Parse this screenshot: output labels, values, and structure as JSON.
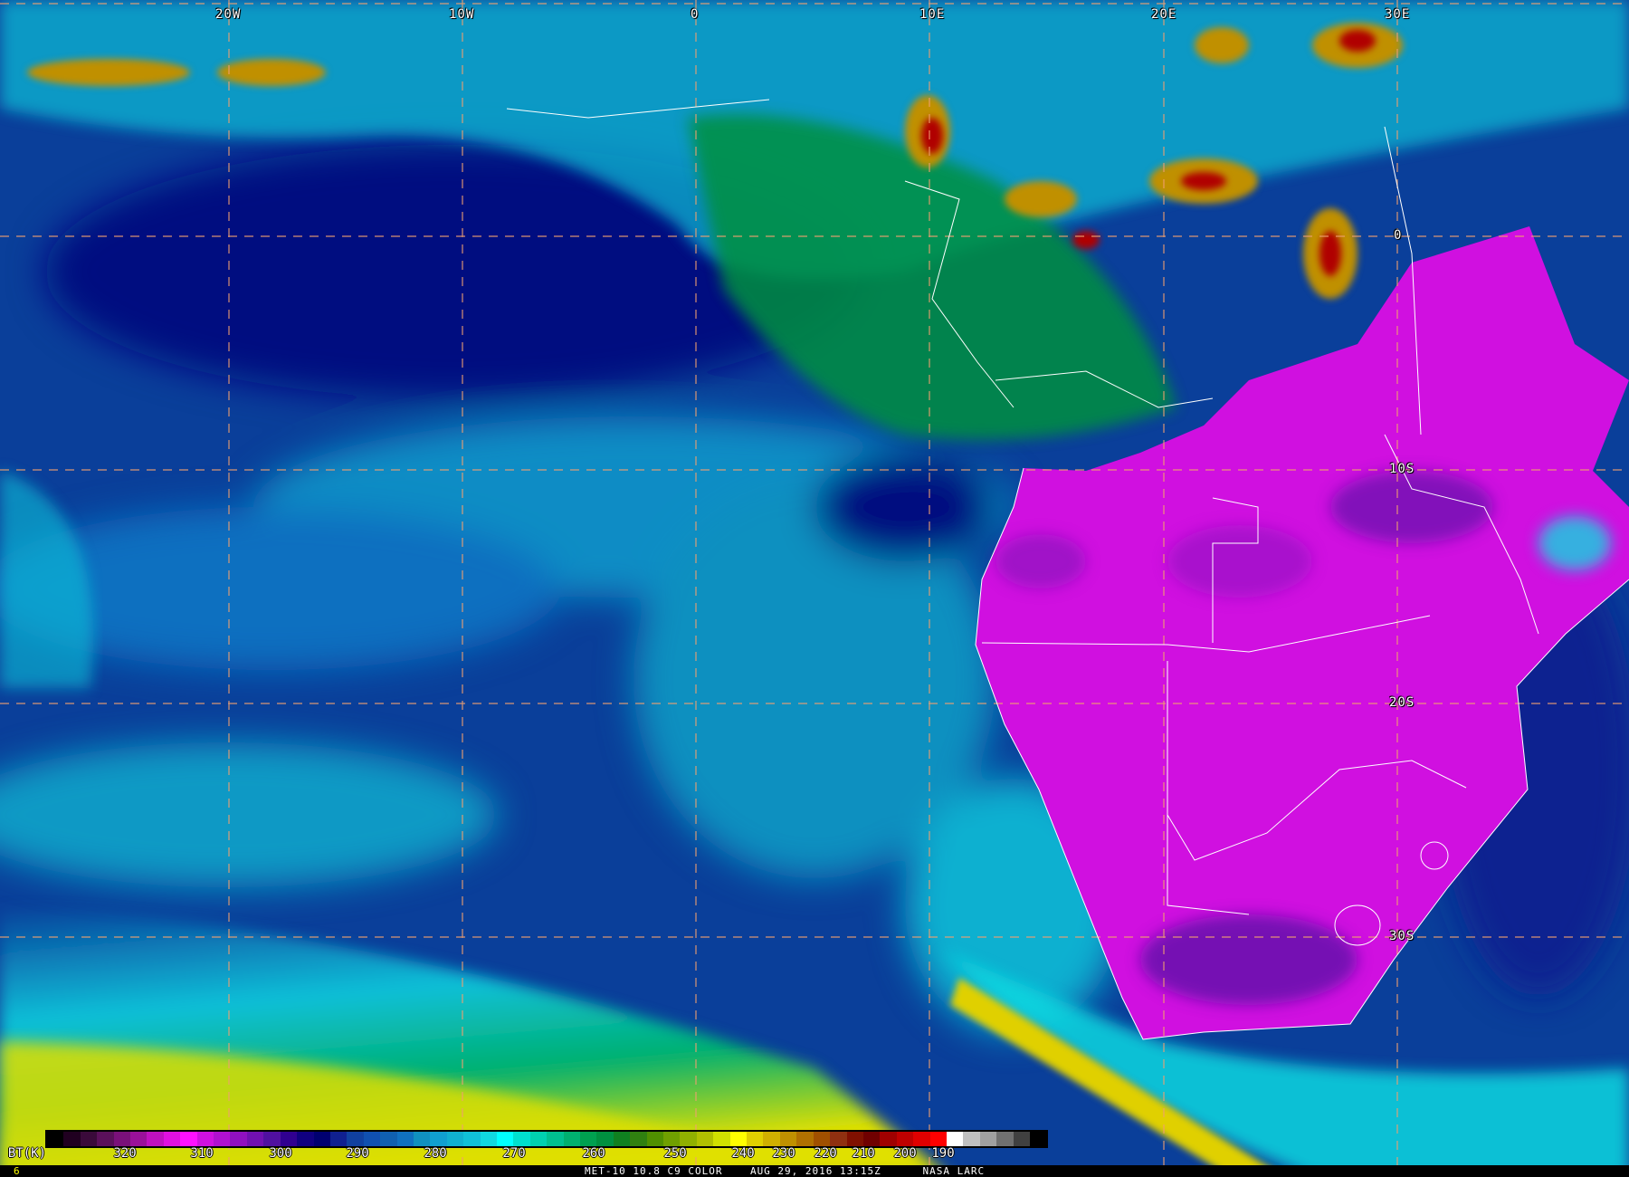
{
  "map": {
    "longitude_labels": [
      "20W",
      "10W",
      "0",
      "10E",
      "20E",
      "30E"
    ],
    "latitude_labels": [
      "0",
      "10S",
      "20S",
      "30S"
    ],
    "colors": {
      "ocean": "#0a3f9a",
      "land": "#d010e0",
      "grid": "#f0a070",
      "border": "#ffffff"
    }
  },
  "colorbar": {
    "title": "BT(K)",
    "tick_labels": [
      "320",
      "310",
      "300",
      "290",
      "280",
      "270",
      "260",
      "250",
      "240",
      "230",
      "220",
      "210",
      "200",
      "190"
    ],
    "colors": [
      "#000000",
      "#200020",
      "#3a0a3a",
      "#5a105a",
      "#7a107a",
      "#9a109a",
      "#c010c0",
      "#e010e0",
      "#ff10ff",
      "#d010e0",
      "#b010d0",
      "#9010c0",
      "#7010b0",
      "#5010a0",
      "#300090",
      "#100080",
      "#000070",
      "#102090",
      "#1040a0",
      "#1050b0",
      "#1060b0",
      "#1070c0",
      "#1090c0",
      "#10a0d0",
      "#10b0d0",
      "#10c0d8",
      "#10d8e0",
      "#00ffff",
      "#00e0d0",
      "#00d0b0",
      "#00c090",
      "#00b070",
      "#00a050",
      "#009040",
      "#108020",
      "#308010",
      "#509000",
      "#70a000",
      "#90b000",
      "#b0c000",
      "#d0e000",
      "#ffff00",
      "#e0d000",
      "#d0b000",
      "#c09000",
      "#b07000",
      "#a05000",
      "#903010",
      "#801000",
      "#700000",
      "#a00000",
      "#c00000",
      "#e00000",
      "#ff0000",
      "#ffffff",
      "#c0c0c0",
      "#a0a0a0",
      "#707070",
      "#404040",
      "#000000"
    ]
  },
  "footer": {
    "frame_number": "6",
    "caption": "MET-10 10.8 C9 COLOR    AUG 29, 2016 13:15Z      NASA LARC"
  }
}
